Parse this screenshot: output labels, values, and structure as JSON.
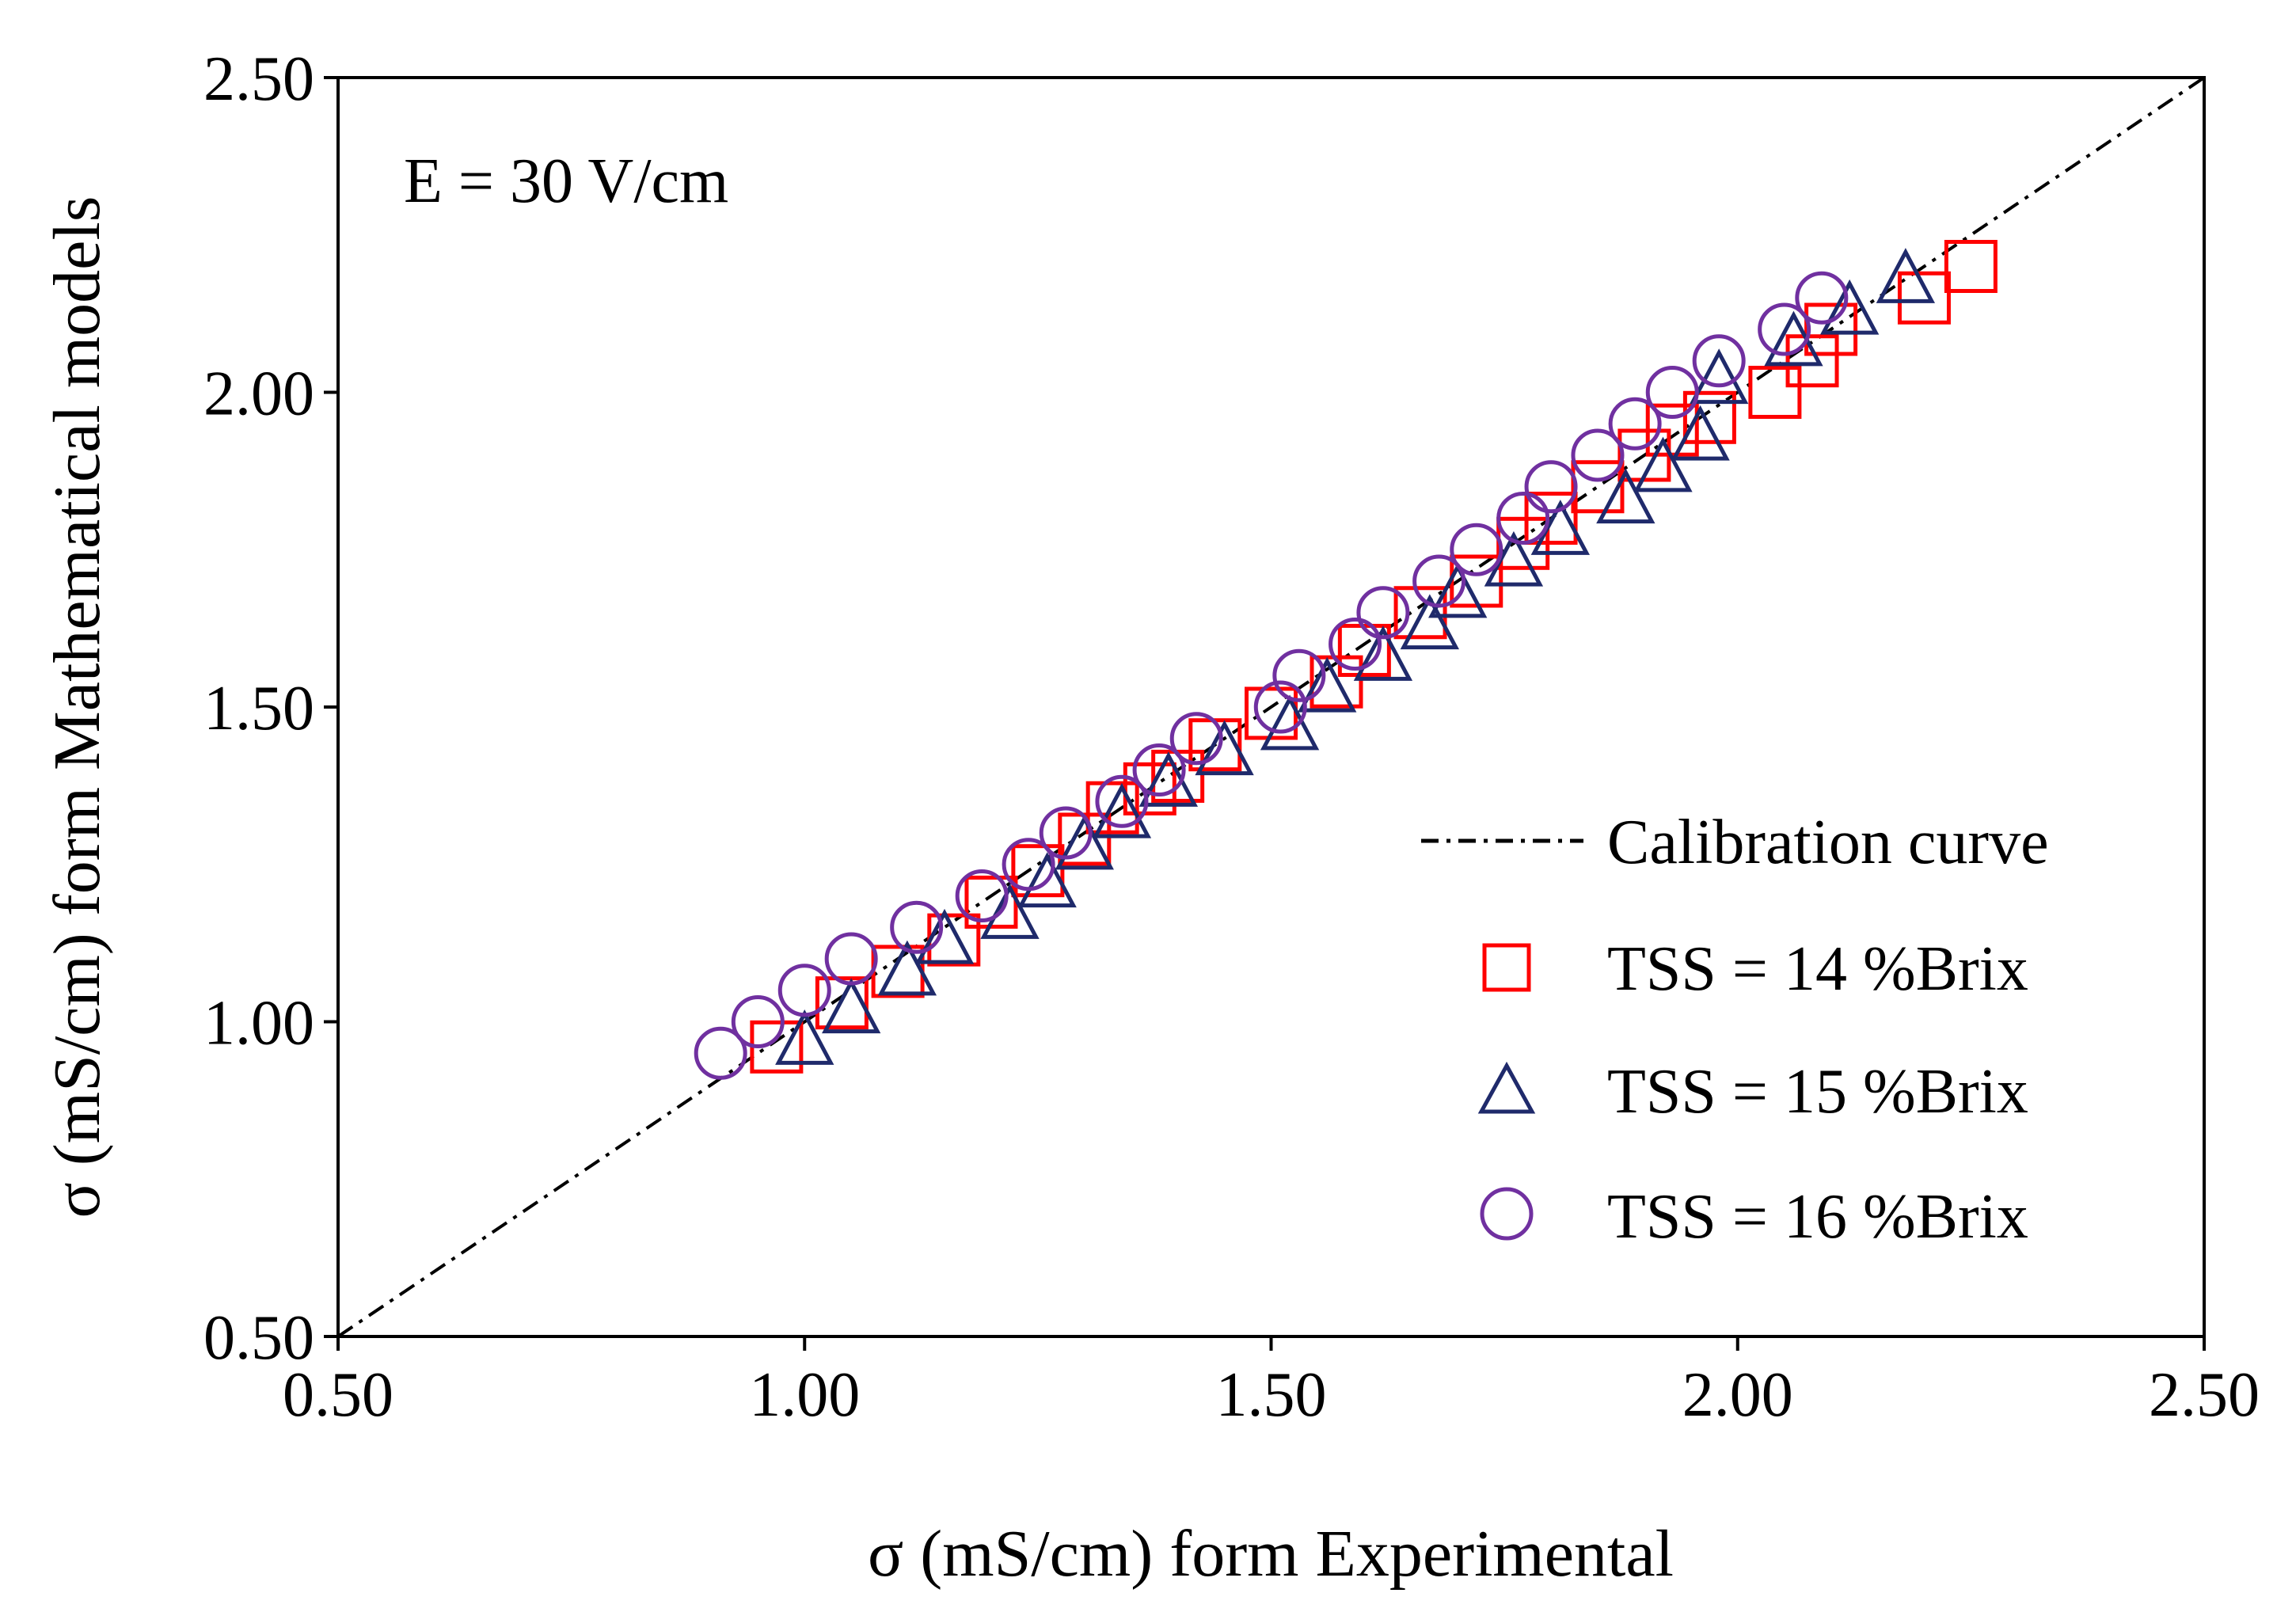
{
  "chart_data": {
    "type": "scatter",
    "title": "",
    "annotation": "E = 30 V/cm",
    "xlabel": "σ (mS/cm) form Experimental",
    "ylabel": "σ (mS/cm) form Mathematical models",
    "xlim": [
      0.5,
      2.5
    ],
    "ylim": [
      0.5,
      2.5
    ],
    "xticks": [
      "0.50",
      "1.00",
      "1.50",
      "2.00",
      "2.50"
    ],
    "yticks": [
      "0.50",
      "1.00",
      "1.50",
      "2.00",
      "2.50"
    ],
    "grid": false,
    "legend_position": "bottom-right",
    "calibration": {
      "name": "Calibration curve",
      "x": [
        0.5,
        2.5
      ],
      "y": [
        0.5,
        2.5
      ]
    },
    "series": [
      {
        "name": "TSS = 14 %Brix",
        "marker": "square",
        "color": "#ff0000",
        "x": [
          0.97,
          1.04,
          1.1,
          1.16,
          1.2,
          1.25,
          1.3,
          1.33,
          1.37,
          1.4,
          1.44,
          1.5,
          1.57,
          1.6,
          1.66,
          1.72,
          1.77,
          1.8,
          1.85,
          1.9,
          1.93,
          1.97,
          2.04,
          2.08,
          2.1,
          2.2,
          2.25
        ],
        "y": [
          0.96,
          1.03,
          1.08,
          1.13,
          1.19,
          1.24,
          1.29,
          1.34,
          1.37,
          1.39,
          1.44,
          1.49,
          1.54,
          1.59,
          1.65,
          1.7,
          1.76,
          1.8,
          1.85,
          1.9,
          1.94,
          1.96,
          2.0,
          2.05,
          2.1,
          2.15,
          2.2
        ]
      },
      {
        "name": "TSS = 15 %Brix",
        "marker": "triangle",
        "color": "#1f2a6b",
        "x": [
          1.0,
          1.05,
          1.11,
          1.15,
          1.22,
          1.26,
          1.3,
          1.34,
          1.39,
          1.45,
          1.52,
          1.56,
          1.62,
          1.67,
          1.7,
          1.76,
          1.81,
          1.88,
          1.92,
          1.96,
          1.98,
          2.06,
          2.12,
          2.18
        ],
        "y": [
          0.97,
          1.02,
          1.08,
          1.13,
          1.17,
          1.22,
          1.28,
          1.33,
          1.38,
          1.43,
          1.47,
          1.53,
          1.58,
          1.63,
          1.68,
          1.73,
          1.78,
          1.83,
          1.88,
          1.93,
          2.02,
          2.08,
          2.13,
          2.18
        ]
      },
      {
        "name": "TSS = 16 %Brix",
        "marker": "circle",
        "color": "#7030a0",
        "x": [
          0.91,
          0.95,
          1.0,
          1.05,
          1.12,
          1.19,
          1.24,
          1.28,
          1.34,
          1.38,
          1.42,
          1.51,
          1.53,
          1.59,
          1.62,
          1.68,
          1.72,
          1.77,
          1.8,
          1.85,
          1.89,
          1.93,
          1.98,
          2.05,
          2.09
        ],
        "y": [
          0.95,
          1.0,
          1.05,
          1.1,
          1.15,
          1.2,
          1.25,
          1.3,
          1.35,
          1.4,
          1.45,
          1.5,
          1.55,
          1.6,
          1.65,
          1.7,
          1.75,
          1.8,
          1.85,
          1.9,
          1.95,
          2.0,
          2.05,
          2.1,
          2.15
        ]
      }
    ]
  }
}
